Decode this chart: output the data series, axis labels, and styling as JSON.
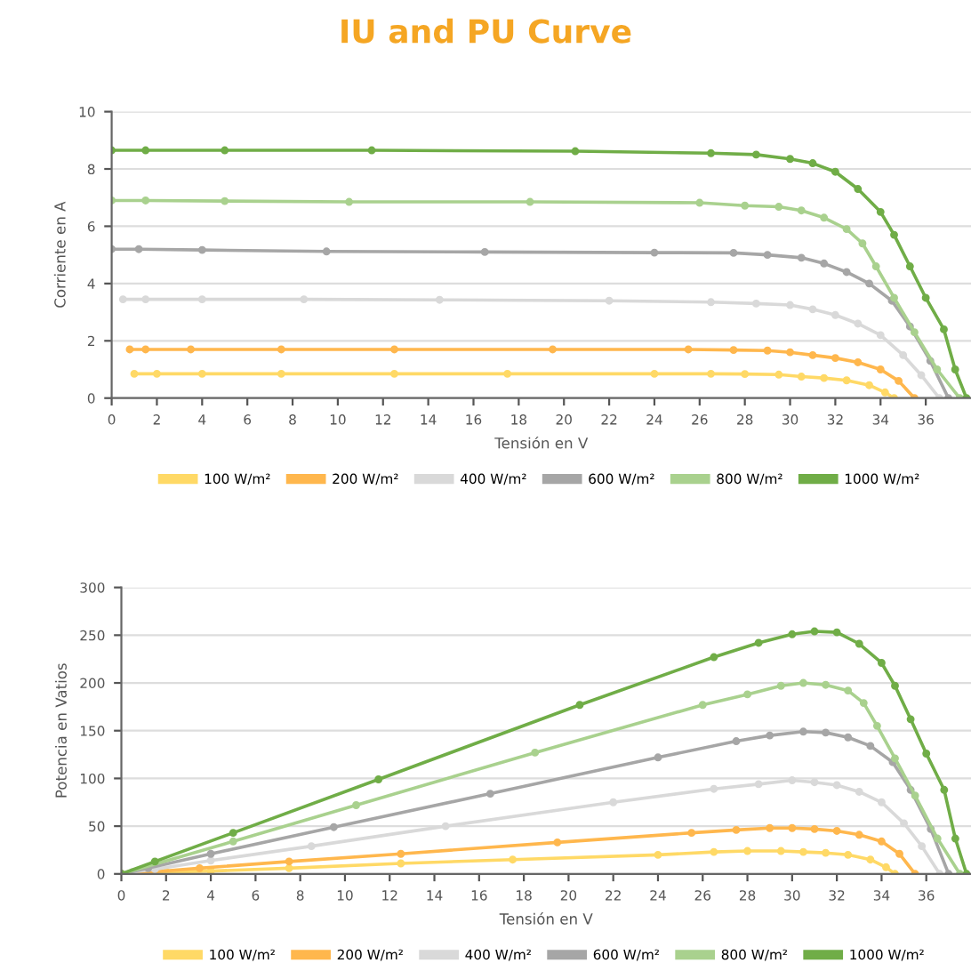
{
  "chart_data": [
    {
      "type": "line",
      "title": "IU and PU Curve",
      "xlabel": "Tensión en V",
      "ylabel": "Corriente en A",
      "xlim": [
        0,
        38
      ],
      "xticks": [
        0,
        2,
        4,
        6,
        8,
        10,
        12,
        14,
        16,
        18,
        20,
        22,
        24,
        26,
        28,
        30,
        32,
        34,
        36
      ],
      "ylim": [
        0,
        10
      ],
      "yticks": [
        0,
        2,
        4,
        6,
        8,
        10
      ],
      "grid": "y",
      "legend": "bottom",
      "marker": "circle",
      "line_style": "solid",
      "series": [
        {
          "name": "100 W/m²",
          "color": "#ffd966",
          "x": [
            1,
            2,
            4,
            7.5,
            12.5,
            17.5,
            24,
            26.5,
            28,
            29.5,
            30.5,
            31.5,
            32.5,
            33.5,
            34.2,
            34.6
          ],
          "values": [
            0.85,
            0.85,
            0.85,
            0.85,
            0.85,
            0.85,
            0.85,
            0.85,
            0.84,
            0.82,
            0.75,
            0.7,
            0.62,
            0.45,
            0.2,
            0
          ]
        },
        {
          "name": "200 W/m²",
          "color": "#ffb74d",
          "x": [
            0.8,
            1.5,
            3.5,
            7.5,
            12.5,
            19.5,
            25.5,
            27.5,
            29,
            30,
            31,
            32,
            33,
            34,
            34.8,
            35.5
          ],
          "values": [
            1.7,
            1.7,
            1.7,
            1.7,
            1.7,
            1.7,
            1.7,
            1.68,
            1.66,
            1.6,
            1.5,
            1.4,
            1.25,
            1.0,
            0.6,
            0
          ]
        },
        {
          "name": "400 W/m²",
          "color": "#d9d9d9",
          "x": [
            0.5,
            1.5,
            4,
            8.5,
            14.5,
            22,
            26.5,
            28.5,
            30,
            31,
            32,
            33,
            34,
            35,
            35.8,
            36.6
          ],
          "values": [
            3.45,
            3.45,
            3.45,
            3.45,
            3.43,
            3.4,
            3.35,
            3.3,
            3.25,
            3.1,
            2.9,
            2.6,
            2.2,
            1.5,
            0.8,
            0
          ]
        },
        {
          "name": "600 W/m²",
          "color": "#a6a6a6",
          "x": [
            0,
            1.2,
            4,
            9.5,
            16.5,
            24,
            27.5,
            29,
            30.5,
            31.5,
            32.5,
            33.5,
            34.5,
            35.3,
            36.2,
            37
          ],
          "values": [
            5.2,
            5.2,
            5.17,
            5.12,
            5.1,
            5.08,
            5.07,
            5.0,
            4.9,
            4.7,
            4.4,
            4.0,
            3.4,
            2.5,
            1.3,
            0
          ]
        },
        {
          "name": "800 W/m²",
          "color": "#a9d18e",
          "x": [
            0,
            1.5,
            5,
            10.5,
            18.5,
            26,
            28,
            29.5,
            30.5,
            31.5,
            32.5,
            33.2,
            33.8,
            34.6,
            35.5,
            36.5,
            37.5
          ],
          "values": [
            6.9,
            6.9,
            6.88,
            6.85,
            6.85,
            6.82,
            6.72,
            6.68,
            6.55,
            6.3,
            5.9,
            5.4,
            4.6,
            3.5,
            2.3,
            1.0,
            0
          ]
        },
        {
          "name": "1000 W/m²",
          "color": "#70ad47",
          "x": [
            0,
            1.5,
            5,
            11.5,
            20.5,
            26.5,
            28.5,
            30,
            31,
            32,
            33,
            34,
            34.6,
            35.3,
            36,
            36.8,
            37.3,
            37.8
          ],
          "values": [
            8.65,
            8.65,
            8.65,
            8.65,
            8.62,
            8.55,
            8.5,
            8.35,
            8.2,
            7.9,
            7.3,
            6.5,
            5.7,
            4.6,
            3.5,
            2.4,
            1.0,
            0
          ]
        }
      ]
    },
    {
      "type": "line",
      "xlabel": "Tensión en V",
      "ylabel": "Potencia en Vatios",
      "xlim": [
        0,
        38
      ],
      "xticks": [
        0,
        2,
        4,
        6,
        8,
        10,
        12,
        14,
        16,
        18,
        20,
        22,
        24,
        26,
        28,
        30,
        32,
        34,
        36
      ],
      "ylim": [
        0,
        300
      ],
      "yticks": [
        0,
        50,
        100,
        150,
        200,
        250,
        300
      ],
      "grid": "y",
      "legend": "bottom",
      "marker": "circle",
      "line_style": "solid",
      "series": [
        {
          "name": "100 W/m²",
          "color": "#ffd966",
          "x": [
            0,
            1,
            2,
            4,
            7.5,
            12.5,
            17.5,
            24,
            26.5,
            28,
            29.5,
            30.5,
            31.5,
            32.5,
            33.5,
            34.2,
            34.6
          ],
          "values": [
            0,
            1,
            2,
            3,
            6,
            11,
            15,
            20,
            23,
            24,
            24,
            23,
            22,
            20,
            15,
            7,
            0
          ]
        },
        {
          "name": "200 W/m²",
          "color": "#ffb74d",
          "x": [
            0,
            0.8,
            3.5,
            7.5,
            12.5,
            19.5,
            25.5,
            27.5,
            29,
            30,
            31,
            32,
            33,
            34,
            34.8,
            35.5
          ],
          "values": [
            0,
            1,
            6,
            13,
            21,
            33,
            43,
            46,
            48,
            48,
            47,
            45,
            41,
            34,
            21,
            0
          ]
        },
        {
          "name": "400 W/m²",
          "color": "#d9d9d9",
          "x": [
            0,
            0.5,
            1.5,
            4,
            8.5,
            14.5,
            22,
            26.5,
            28.5,
            30,
            31,
            32,
            33,
            34,
            35,
            35.8,
            36.6
          ],
          "values": [
            0,
            2,
            5,
            14,
            29,
            50,
            75,
            89,
            94,
            98,
            96,
            93,
            86,
            75,
            53,
            29,
            0
          ]
        },
        {
          "name": "600 W/m²",
          "color": "#a6a6a6",
          "x": [
            0,
            1.2,
            4,
            9.5,
            16.5,
            24,
            27.5,
            29,
            30.5,
            31.5,
            32.5,
            33.5,
            34.5,
            35.3,
            36.2,
            37
          ],
          "values": [
            0,
            6,
            21,
            49,
            84,
            122,
            139,
            145,
            149,
            148,
            143,
            134,
            117,
            88,
            47,
            0
          ]
        },
        {
          "name": "800 W/m²",
          "color": "#a9d18e",
          "x": [
            0,
            5,
            10.5,
            18.5,
            26,
            28,
            29.5,
            30.5,
            31.5,
            32.5,
            33.2,
            33.8,
            34.6,
            35.5,
            36.5,
            37.5
          ],
          "values": [
            0,
            34,
            72,
            127,
            177,
            188,
            197,
            200,
            198,
            192,
            179,
            155,
            121,
            82,
            37,
            0
          ]
        },
        {
          "name": "1000 W/m²",
          "color": "#70ad47",
          "x": [
            0,
            1.5,
            5,
            11.5,
            20.5,
            26.5,
            28.5,
            30,
            31,
            32,
            33,
            34,
            34.6,
            35.3,
            36,
            36.8,
            37.3,
            37.8
          ],
          "values": [
            0,
            13,
            43,
            99,
            177,
            227,
            242,
            251,
            254,
            253,
            241,
            221,
            197,
            162,
            126,
            88,
            37,
            0
          ]
        }
      ]
    }
  ]
}
